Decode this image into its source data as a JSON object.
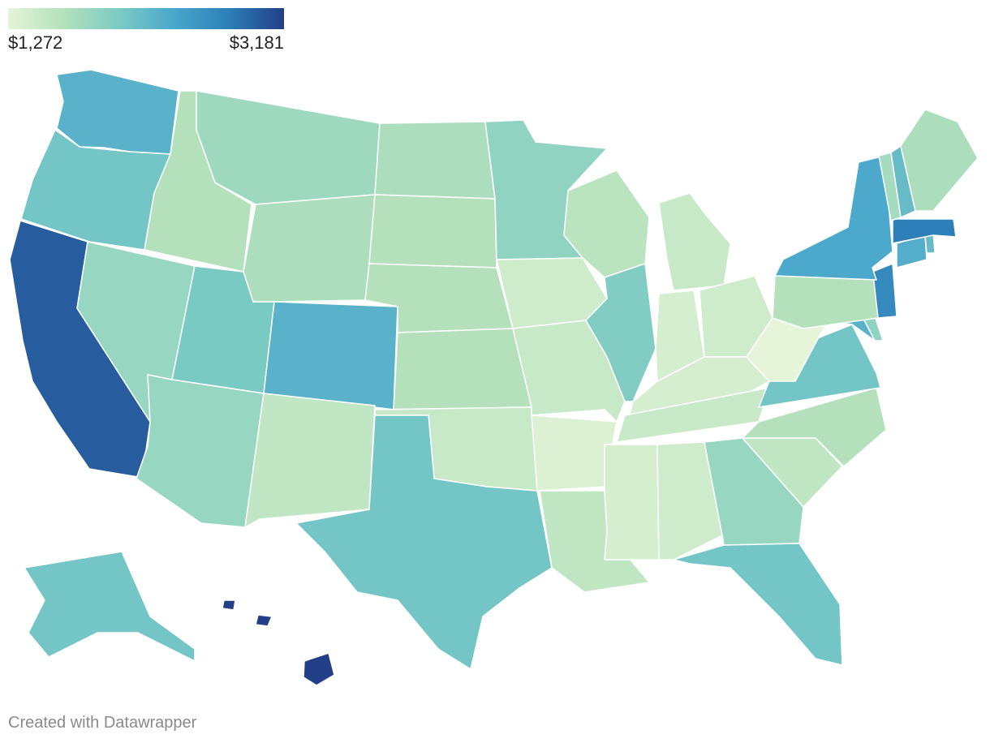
{
  "legend": {
    "min_label": "$1,272",
    "max_label": "$3,181",
    "colors": [
      "#e6f4d9",
      "#b3e1bc",
      "#7ccbc4",
      "#4aa7cc",
      "#2c7fb8",
      "#223f88"
    ]
  },
  "credit": "Created with Datawrapper",
  "chart_data": {
    "type": "choropleth",
    "scale": {
      "min": 1272,
      "max": 3181
    },
    "regions": [
      {
        "id": "WA",
        "value": 2300
      },
      {
        "id": "OR",
        "value": 2100
      },
      {
        "id": "CA",
        "value": 3000
      },
      {
        "id": "ID",
        "value": 1650
      },
      {
        "id": "NV",
        "value": 1850
      },
      {
        "id": "UT",
        "value": 2050
      },
      {
        "id": "AZ",
        "value": 1850
      },
      {
        "id": "MT",
        "value": 1800
      },
      {
        "id": "WY",
        "value": 1700
      },
      {
        "id": "CO",
        "value": 2300
      },
      {
        "id": "NM",
        "value": 1550
      },
      {
        "id": "ND",
        "value": 1700
      },
      {
        "id": "SD",
        "value": 1650
      },
      {
        "id": "NE",
        "value": 1650
      },
      {
        "id": "KS",
        "value": 1650
      },
      {
        "id": "OK",
        "value": 1500
      },
      {
        "id": "TX",
        "value": 2100
      },
      {
        "id": "MN",
        "value": 1900
      },
      {
        "id": "IA",
        "value": 1450
      },
      {
        "id": "MO",
        "value": 1500
      },
      {
        "id": "AR",
        "value": 1350
      },
      {
        "id": "LA",
        "value": 1550
      },
      {
        "id": "WI",
        "value": 1600
      },
      {
        "id": "IL",
        "value": 2000
      },
      {
        "id": "MI",
        "value": 1500
      },
      {
        "id": "IN",
        "value": 1400
      },
      {
        "id": "OH",
        "value": 1450
      },
      {
        "id": "KY",
        "value": 1400
      },
      {
        "id": "TN",
        "value": 1500
      },
      {
        "id": "MS",
        "value": 1400
      },
      {
        "id": "AL",
        "value": 1450
      },
      {
        "id": "GA",
        "value": 1850
      },
      {
        "id": "FL",
        "value": 2100
      },
      {
        "id": "SC",
        "value": 1550
      },
      {
        "id": "NC",
        "value": 1650
      },
      {
        "id": "VA",
        "value": 2100
      },
      {
        "id": "WV",
        "value": 1272
      },
      {
        "id": "MD",
        "value": 2300
      },
      {
        "id": "DE",
        "value": 1900
      },
      {
        "id": "NJ",
        "value": 2700
      },
      {
        "id": "PA",
        "value": 1650
      },
      {
        "id": "NY",
        "value": 2400
      },
      {
        "id": "CT",
        "value": 2350
      },
      {
        "id": "RI",
        "value": 2200
      },
      {
        "id": "MA",
        "value": 2800
      },
      {
        "id": "VT",
        "value": 1750
      },
      {
        "id": "NH",
        "value": 2200
      },
      {
        "id": "ME",
        "value": 1700
      },
      {
        "id": "AK",
        "value": 2100
      },
      {
        "id": "HI",
        "value": 3181
      }
    ]
  }
}
